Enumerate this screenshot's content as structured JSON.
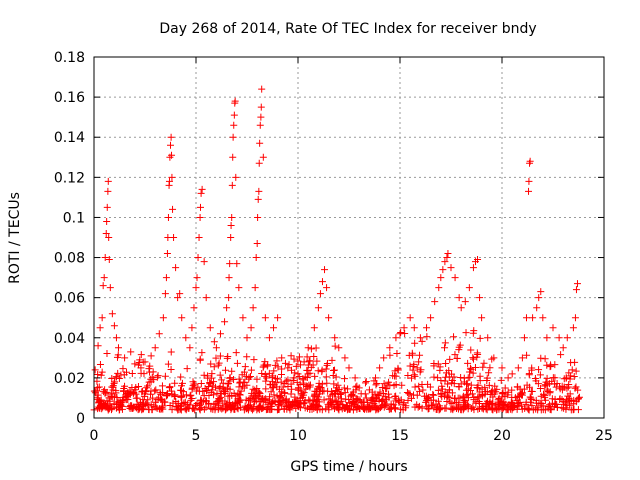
{
  "chart_data": {
    "type": "scatter",
    "title": "Day 268 of 2014, Rate Of TEC Index for receiver bndy",
    "xlabel": "GPS time / hours",
    "ylabel": "ROTI / TECUs",
    "xlim": [
      0,
      25
    ],
    "ylim": [
      0,
      0.18
    ],
    "x_ticks": [
      0,
      5,
      10,
      15,
      20,
      25
    ],
    "x_tick_labels": [
      "0",
      "5",
      "10",
      "15",
      "20",
      "25"
    ],
    "y_ticks": [
      0,
      0.02,
      0.04,
      0.06,
      0.08,
      0.1,
      0.12,
      0.14,
      0.16,
      0.18
    ],
    "y_tick_labels": [
      "0",
      "0.02",
      "0.04",
      "0.06",
      "0.08",
      "0.1",
      "0.12",
      "0.14",
      "0.16",
      "0.18"
    ],
    "grid": true,
    "marker": "plus",
    "series": [
      {
        "name": "ROTI",
        "color": "#ff0000",
        "points": [
          [
            0.2,
            0.036
          ],
          [
            0.3,
            0.045
          ],
          [
            0.4,
            0.05
          ],
          [
            0.45,
            0.066
          ],
          [
            0.5,
            0.07
          ],
          [
            0.55,
            0.08
          ],
          [
            0.6,
            0.092
          ],
          [
            0.62,
            0.098
          ],
          [
            0.65,
            0.105
          ],
          [
            0.68,
            0.113
          ],
          [
            0.7,
            0.118
          ],
          [
            0.72,
            0.09
          ],
          [
            0.75,
            0.079
          ],
          [
            0.8,
            0.065
          ],
          [
            0.9,
            0.052
          ],
          [
            1.0,
            0.046
          ],
          [
            1.1,
            0.04
          ],
          [
            1.2,
            0.035
          ],
          [
            1.5,
            0.03
          ],
          [
            1.8,
            0.033
          ],
          [
            2.0,
            0.027
          ],
          [
            2.3,
            0.025
          ],
          [
            2.5,
            0.028
          ],
          [
            2.8,
            0.031
          ],
          [
            3.0,
            0.035
          ],
          [
            3.2,
            0.042
          ],
          [
            3.4,
            0.05
          ],
          [
            3.5,
            0.062
          ],
          [
            3.55,
            0.07
          ],
          [
            3.6,
            0.082
          ],
          [
            3.62,
            0.09
          ],
          [
            3.65,
            0.1
          ],
          [
            3.68,
            0.116
          ],
          [
            3.7,
            0.118
          ],
          [
            3.72,
            0.13
          ],
          [
            3.75,
            0.136
          ],
          [
            3.78,
            0.14
          ],
          [
            3.8,
            0.131
          ],
          [
            3.82,
            0.12
          ],
          [
            3.85,
            0.104
          ],
          [
            3.9,
            0.09
          ],
          [
            4.0,
            0.075
          ],
          [
            4.1,
            0.06
          ],
          [
            4.2,
            0.062
          ],
          [
            4.3,
            0.05
          ],
          [
            4.5,
            0.04
          ],
          [
            4.7,
            0.035
          ],
          [
            4.8,
            0.045
          ],
          [
            4.9,
            0.055
          ],
          [
            5.0,
            0.065
          ],
          [
            5.05,
            0.07
          ],
          [
            5.1,
            0.08
          ],
          [
            5.15,
            0.09
          ],
          [
            5.2,
            0.1
          ],
          [
            5.22,
            0.105
          ],
          [
            5.25,
            0.112
          ],
          [
            5.3,
            0.114
          ],
          [
            5.4,
            0.078
          ],
          [
            5.5,
            0.06
          ],
          [
            5.7,
            0.045
          ],
          [
            5.9,
            0.038
          ],
          [
            6.0,
            0.035
          ],
          [
            6.2,
            0.042
          ],
          [
            6.4,
            0.048
          ],
          [
            6.5,
            0.055
          ],
          [
            6.6,
            0.06
          ],
          [
            6.62,
            0.07
          ],
          [
            6.65,
            0.077
          ],
          [
            6.7,
            0.09
          ],
          [
            6.72,
            0.096
          ],
          [
            6.75,
            0.1
          ],
          [
            6.78,
            0.116
          ],
          [
            6.8,
            0.13
          ],
          [
            6.82,
            0.14
          ],
          [
            6.85,
            0.146
          ],
          [
            6.88,
            0.151
          ],
          [
            6.9,
            0.157
          ],
          [
            6.92,
            0.158
          ],
          [
            6.95,
            0.12
          ],
          [
            7.0,
            0.077
          ],
          [
            7.1,
            0.065
          ],
          [
            7.3,
            0.05
          ],
          [
            7.5,
            0.04
          ],
          [
            7.7,
            0.045
          ],
          [
            7.8,
            0.055
          ],
          [
            7.9,
            0.065
          ],
          [
            7.95,
            0.08
          ],
          [
            8.0,
            0.087
          ],
          [
            8.02,
            0.1
          ],
          [
            8.05,
            0.109
          ],
          [
            8.08,
            0.113
          ],
          [
            8.1,
            0.127
          ],
          [
            8.12,
            0.137
          ],
          [
            8.15,
            0.146
          ],
          [
            8.18,
            0.15
          ],
          [
            8.2,
            0.155
          ],
          [
            8.22,
            0.164
          ],
          [
            8.3,
            0.13
          ],
          [
            8.4,
            0.05
          ],
          [
            8.6,
            0.04
          ],
          [
            8.8,
            0.045
          ],
          [
            9.0,
            0.05
          ],
          [
            9.2,
            0.03
          ],
          [
            9.5,
            0.025
          ],
          [
            9.8,
            0.02
          ],
          [
            10.0,
            0.022
          ],
          [
            10.3,
            0.028
          ],
          [
            10.5,
            0.035
          ],
          [
            10.8,
            0.045
          ],
          [
            11.0,
            0.055
          ],
          [
            11.1,
            0.062
          ],
          [
            11.2,
            0.068
          ],
          [
            11.3,
            0.074
          ],
          [
            11.4,
            0.065
          ],
          [
            11.5,
            0.05
          ],
          [
            11.8,
            0.04
          ],
          [
            12.0,
            0.035
          ],
          [
            12.3,
            0.03
          ],
          [
            12.5,
            0.025
          ],
          [
            12.8,
            0.02
          ],
          [
            13.0,
            0.015
          ],
          [
            13.3,
            0.012
          ],
          [
            13.5,
            0.014
          ],
          [
            13.8,
            0.02
          ],
          [
            14.0,
            0.025
          ],
          [
            14.2,
            0.03
          ],
          [
            14.5,
            0.035
          ],
          [
            14.8,
            0.04
          ],
          [
            15.0,
            0.042
          ],
          [
            15.2,
            0.045
          ],
          [
            15.5,
            0.05
          ],
          [
            15.7,
            0.045
          ],
          [
            16.0,
            0.04
          ],
          [
            16.3,
            0.045
          ],
          [
            16.5,
            0.05
          ],
          [
            16.7,
            0.058
          ],
          [
            16.9,
            0.065
          ],
          [
            17.0,
            0.07
          ],
          [
            17.1,
            0.074
          ],
          [
            17.2,
            0.078
          ],
          [
            17.3,
            0.08
          ],
          [
            17.35,
            0.082
          ],
          [
            17.5,
            0.075
          ],
          [
            17.7,
            0.07
          ],
          [
            17.9,
            0.06
          ],
          [
            18.0,
            0.055
          ],
          [
            18.2,
            0.058
          ],
          [
            18.4,
            0.065
          ],
          [
            18.6,
            0.075
          ],
          [
            18.7,
            0.078
          ],
          [
            18.8,
            0.079
          ],
          [
            18.9,
            0.06
          ],
          [
            19.0,
            0.05
          ],
          [
            19.3,
            0.04
          ],
          [
            19.6,
            0.03
          ],
          [
            20.0,
            0.025
          ],
          [
            20.3,
            0.02
          ],
          [
            20.5,
            0.022
          ],
          [
            20.8,
            0.025
          ],
          [
            21.0,
            0.03
          ],
          [
            21.1,
            0.04
          ],
          [
            21.2,
            0.05
          ],
          [
            21.3,
            0.113
          ],
          [
            21.32,
            0.118
          ],
          [
            21.35,
            0.127
          ],
          [
            21.38,
            0.128
          ],
          [
            21.5,
            0.05
          ],
          [
            21.7,
            0.055
          ],
          [
            21.8,
            0.06
          ],
          [
            21.9,
            0.063
          ],
          [
            22.0,
            0.05
          ],
          [
            22.2,
            0.04
          ],
          [
            22.5,
            0.045
          ],
          [
            22.8,
            0.04
          ],
          [
            23.0,
            0.035
          ],
          [
            23.2,
            0.04
          ],
          [
            23.5,
            0.045
          ],
          [
            23.6,
            0.05
          ],
          [
            23.65,
            0.064
          ],
          [
            23.7,
            0.067
          ]
        ]
      }
    ]
  }
}
